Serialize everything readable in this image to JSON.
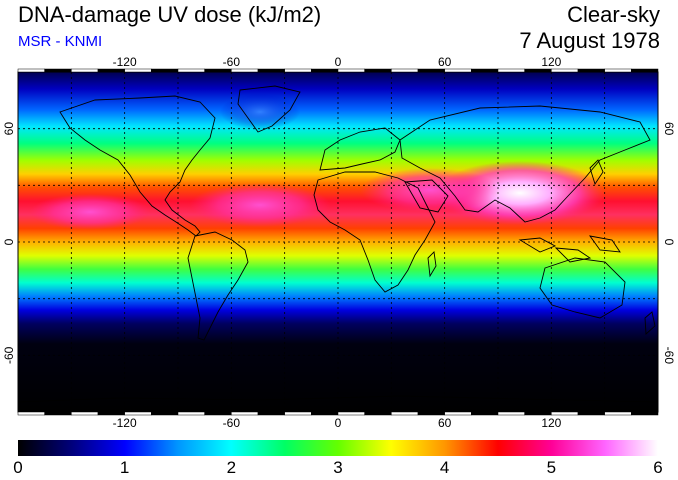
{
  "header": {
    "title": "DNA-damage UV dose (kJ/m2)",
    "subtitle": "MSR - KNMI",
    "subtitle_color": "#0000ff",
    "condition": "Clear-sky",
    "date": "7 August 1978"
  },
  "map": {
    "projection": "equirectangular",
    "lon_range": [
      -180,
      180
    ],
    "lat_range": [
      -90,
      90
    ],
    "grid_lines": "dotted",
    "lon_ticks": [
      "-120",
      "-60",
      "0",
      "60",
      "120"
    ],
    "lat_ticks_left": [
      "60",
      "0",
      "-60"
    ],
    "lat_ticks_right": [
      "60",
      "0",
      "-60"
    ]
  },
  "colorbar": {
    "min": 0,
    "max": 6,
    "labels": [
      "0",
      "1",
      "2",
      "3",
      "4",
      "5",
      "6"
    ],
    "stops": [
      "#000000",
      "#00007a",
      "#0000ff",
      "#0096ff",
      "#00ffff",
      "#00ff64",
      "#64ff00",
      "#ffff00",
      "#ff9600",
      "#ff0000",
      "#ff0096",
      "#ff64ff",
      "#ffffff"
    ]
  }
}
